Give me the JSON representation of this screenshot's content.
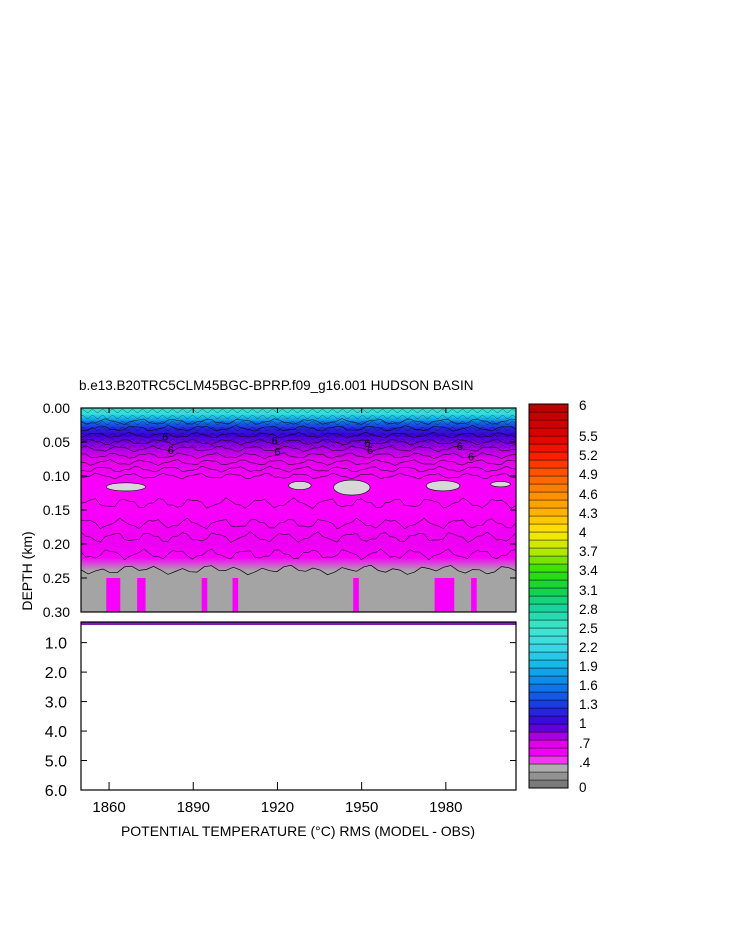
{
  "chart_data": {
    "type": "heatmap",
    "title": "b.e13.B20TRC5CLM45BGC-BPRP.f09_g16.001 HUDSON BASIN",
    "xlabel": "POTENTIAL TEMPERATURE (°C) RMS (MODEL - OBS)",
    "ylabel": "DEPTH (km)",
    "xlim": [
      1850,
      2005
    ],
    "x_ticks": [
      1860,
      1890,
      1920,
      1950,
      1980
    ],
    "x_tick_labels": [
      "1860",
      "1890",
      "1920",
      "1950",
      "1980"
    ],
    "upper_panel": {
      "ylim": [
        0.0,
        0.3
      ],
      "y_ticks": [
        0.0,
        0.05,
        0.1,
        0.15,
        0.2,
        0.25,
        0.3
      ],
      "y_tick_labels": [
        "0.00",
        "0.05",
        "0.10",
        "0.15",
        "0.20",
        "0.25",
        "0.30"
      ]
    },
    "lower_panel": {
      "ylim": [
        0.3,
        6.0
      ],
      "y_ticks": [
        1.0,
        2.0,
        3.0,
        4.0,
        5.0,
        6.0
      ],
      "y_tick_labels": [
        "1.0",
        "2.0",
        "3.0",
        "4.0",
        "5.0",
        "6.0"
      ]
    },
    "contour_labels": [
      {
        "text": "6",
        "x": 1880,
        "y": 0.048
      },
      {
        "text": "6",
        "x": 1882,
        "y": 0.068
      },
      {
        "text": "6",
        "x": 1919,
        "y": 0.054
      },
      {
        "text": "6",
        "x": 1920,
        "y": 0.07
      },
      {
        "text": "6",
        "x": 1952,
        "y": 0.057
      },
      {
        "text": "6",
        "x": 1953,
        "y": 0.068
      },
      {
        "text": "6",
        "x": 1985,
        "y": 0.062
      },
      {
        "text": "6",
        "x": 1989,
        "y": 0.077
      }
    ],
    "profile": [
      {
        "depth": 0.0,
        "value": 2.6
      },
      {
        "depth": 0.008,
        "value": 2.3
      },
      {
        "depth": 0.015,
        "value": 1.9
      },
      {
        "depth": 0.022,
        "value": 1.5
      },
      {
        "depth": 0.03,
        "value": 1.2
      },
      {
        "depth": 0.04,
        "value": 1.0
      },
      {
        "depth": 0.05,
        "value": 0.9
      },
      {
        "depth": 0.06,
        "value": 0.8
      },
      {
        "depth": 0.075,
        "value": 0.7
      },
      {
        "depth": 0.09,
        "value": 0.6
      },
      {
        "depth": 0.11,
        "value": 0.5
      },
      {
        "depth": 0.13,
        "value": 0.5
      },
      {
        "depth": 0.15,
        "value": 0.5
      },
      {
        "depth": 0.17,
        "value": 0.55
      },
      {
        "depth": 0.2,
        "value": 0.6
      },
      {
        "depth": 0.22,
        "value": 0.5
      },
      {
        "depth": 0.24,
        "value": 0.3
      },
      {
        "depth": 0.3,
        "value": 0.3
      }
    ],
    "low_value_patches": [
      {
        "x": [
          1859,
          1873
        ],
        "y": [
          0.11,
          0.122
        ],
        "value": 0.4
      },
      {
        "x": [
          1924,
          1932
        ],
        "y": [
          0.108,
          0.12
        ],
        "value": 0.4
      },
      {
        "x": [
          1940,
          1953
        ],
        "y": [
          0.106,
          0.128
        ],
        "value": 0.4
      },
      {
        "x": [
          1973,
          1985
        ],
        "y": [
          0.107,
          0.122
        ],
        "value": 0.4
      },
      {
        "x": [
          1996,
          2003
        ],
        "y": [
          0.108,
          0.116
        ],
        "value": 0.4
      }
    ],
    "high_value_columns": [
      {
        "x": [
          1859,
          1864
        ],
        "y": [
          0.25,
          0.3
        ],
        "value": 0.5
      },
      {
        "x": [
          1870,
          1873
        ],
        "y": [
          0.25,
          0.3
        ],
        "value": 0.5
      },
      {
        "x": [
          1893,
          1895
        ],
        "y": [
          0.25,
          0.3
        ],
        "value": 0.5
      },
      {
        "x": [
          1904,
          1906
        ],
        "y": [
          0.25,
          0.3
        ],
        "value": 0.5
      },
      {
        "x": [
          1947,
          1949
        ],
        "y": [
          0.25,
          0.3
        ],
        "value": 0.5
      },
      {
        "x": [
          1976,
          1983
        ],
        "y": [
          0.25,
          0.3
        ],
        "value": 0.5
      },
      {
        "x": [
          1989,
          1991
        ],
        "y": [
          0.25,
          0.3
        ],
        "value": 0.5
      }
    ],
    "colorbar": {
      "tick_labels": [
        "6",
        "5.5",
        "5.2",
        "4.9",
        "4.6",
        "4.3",
        "4",
        "3.7",
        "3.4",
        "3.1",
        "2.8",
        "2.5",
        "2.2",
        "1.9",
        "1.6",
        "1.3",
        "1",
        ".7",
        ".4",
        "0"
      ],
      "tick_values": [
        6,
        5.5,
        5.2,
        4.9,
        4.6,
        4.3,
        4,
        3.7,
        3.4,
        3.1,
        2.8,
        2.5,
        2.2,
        1.9,
        1.6,
        1.3,
        1,
        0.7,
        0.4,
        0
      ],
      "stops": [
        {
          "value": 0.0,
          "color": "#6e6e6e"
        },
        {
          "value": 0.3,
          "color": "#a8a8a8"
        },
        {
          "value": 0.4,
          "color": "#d8d8d8"
        },
        {
          "value": 0.45,
          "color": "#ff00ff"
        },
        {
          "value": 0.7,
          "color": "#e000ea"
        },
        {
          "value": 1.0,
          "color": "#3e00d8"
        },
        {
          "value": 1.3,
          "color": "#1a3ae0"
        },
        {
          "value": 1.6,
          "color": "#0a7de8"
        },
        {
          "value": 1.9,
          "color": "#12b4e6"
        },
        {
          "value": 2.2,
          "color": "#3cd8e8"
        },
        {
          "value": 2.5,
          "color": "#40e6cc"
        },
        {
          "value": 2.8,
          "color": "#18d4a0"
        },
        {
          "value": 3.1,
          "color": "#14d048"
        },
        {
          "value": 3.4,
          "color": "#30e000"
        },
        {
          "value": 3.7,
          "color": "#b8e800"
        },
        {
          "value": 4.0,
          "color": "#ffe800"
        },
        {
          "value": 4.3,
          "color": "#ffb400"
        },
        {
          "value": 4.6,
          "color": "#ff8c00"
        },
        {
          "value": 4.9,
          "color": "#ff5a00"
        },
        {
          "value": 5.2,
          "color": "#ff1a00"
        },
        {
          "value": 5.5,
          "color": "#e00000"
        },
        {
          "value": 6.0,
          "color": "#b40000"
        }
      ]
    }
  }
}
